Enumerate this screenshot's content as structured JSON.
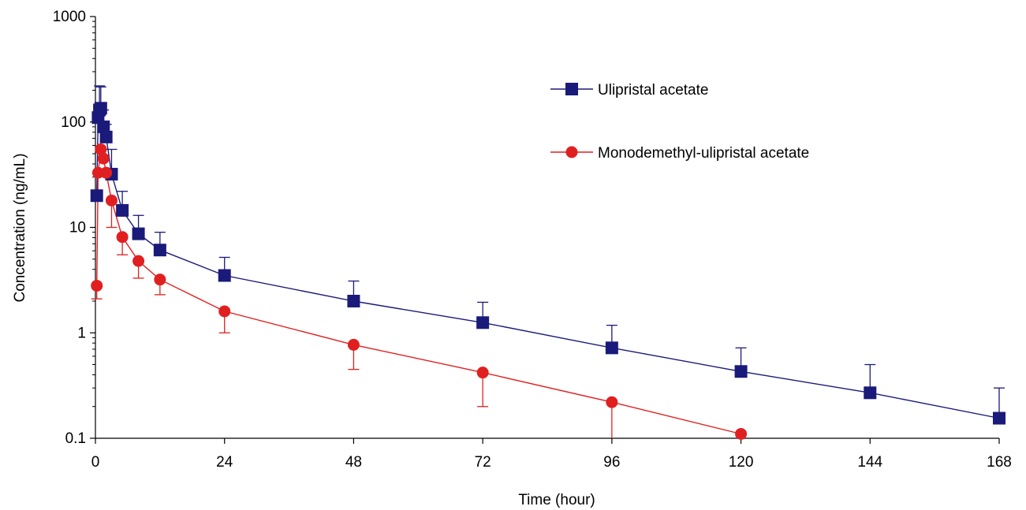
{
  "chart_data": {
    "type": "line",
    "xlabel": "Time (hour)",
    "ylabel": "Concentration (ng/mL)",
    "xlim": [
      0,
      168
    ],
    "ylim": [
      0.1,
      1000
    ],
    "yscale": "log",
    "xticks": [
      0,
      24,
      48,
      72,
      96,
      120,
      144,
      168
    ],
    "yticks": [
      0.1,
      1,
      10,
      100,
      1000
    ],
    "ytick_labels": [
      "0.1",
      "1",
      "10",
      "100",
      "1000"
    ],
    "xtick_labels": [
      "0",
      "24",
      "48",
      "72",
      "96",
      "120",
      "144",
      "168"
    ],
    "grid": false,
    "legend_position": "top-right",
    "series": [
      {
        "name": "Ulipristal acetate",
        "color": "#1a1a7a",
        "marker": "square",
        "x": [
          0.25,
          0.5,
          0.75,
          1,
          1.5,
          2,
          3,
          5,
          8,
          12,
          24,
          48,
          72,
          96,
          120,
          144,
          168
        ],
        "y": [
          20,
          110,
          130,
          135,
          90,
          72,
          32,
          14.5,
          8.7,
          6.1,
          3.5,
          2.0,
          1.25,
          0.72,
          0.43,
          0.27,
          0.155
        ],
        "error_upper": [
          null,
          null,
          220,
          215,
          130,
          95,
          55,
          22,
          13,
          9,
          5.2,
          3.1,
          1.95,
          1.18,
          0.72,
          0.5,
          0.3
        ]
      },
      {
        "name": "Monodemethyl-ulipristal acetate",
        "color": "#e02020",
        "marker": "circle",
        "x": [
          0.25,
          0.5,
          1,
          1.5,
          2,
          3,
          5,
          8,
          12,
          24,
          48,
          72,
          96,
          120
        ],
        "y": [
          2.8,
          33,
          55,
          45,
          33,
          18,
          8.1,
          4.8,
          3.2,
          1.6,
          0.77,
          0.42,
          0.22,
          0.11
        ],
        "error_lower": [
          2.1,
          null,
          null,
          null,
          null,
          10,
          5.5,
          3.3,
          2.3,
          1.0,
          0.45,
          0.2,
          0.1,
          null
        ]
      }
    ]
  }
}
